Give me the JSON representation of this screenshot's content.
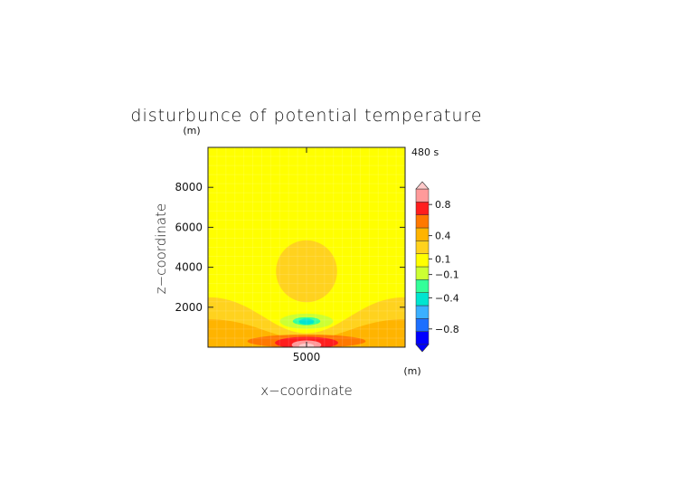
{
  "chart_data": {
    "type": "heatmap",
    "title": "disturbunce of potential temperature",
    "subtitle": "",
    "time_label": "480 s",
    "xlabel": "x−coordinate",
    "ylabel": "z−coordinate",
    "x_unit": "(m)",
    "y_unit": "(m)",
    "xlim": [
      0,
      10000
    ],
    "ylim": [
      0,
      10000
    ],
    "x_ticks": [
      5000
    ],
    "x_tick_labels": [
      "5000"
    ],
    "y_ticks": [
      2000,
      4000,
      6000,
      8000
    ],
    "y_tick_labels": [
      "2000",
      "4000",
      "6000",
      "8000"
    ],
    "colorbar": {
      "levels": [
        -1.0,
        -0.8,
        -0.6,
        -0.4,
        -0.2,
        -0.1,
        0.0,
        0.1,
        0.2,
        0.4,
        0.6,
        0.8,
        1.0
      ],
      "colors": [
        "#0000ff",
        "#1c6fff",
        "#3bb0ff",
        "#00e5d0",
        "#33ff99",
        "#ccff33",
        "#ffff00",
        "#ffd21e",
        "#ffb400",
        "#ff7800",
        "#ff1e1e",
        "#ff9a9a",
        "#ffcaca"
      ],
      "labels": [
        "0.8",
        "0.4",
        "0.1",
        "−0.1",
        "−0.4",
        "−0.8"
      ],
      "label_values": [
        0.8,
        0.4,
        0.1,
        -0.1,
        -0.4,
        -0.8
      ]
    },
    "regions": [
      {
        "kind": "band",
        "level": 0.1,
        "color": "#ffd21e",
        "cx": 5000,
        "top": 2500,
        "side_top": 2500,
        "mid_top": 700
      },
      {
        "kind": "band",
        "level": 0.2,
        "color": "#ffb400",
        "cx": 5000,
        "top": 1400,
        "side_top": 1400,
        "mid_top": 400
      },
      {
        "kind": "ellipse",
        "level": 0.1,
        "color": "#ffd21e",
        "cx": 5000,
        "cy": 3800,
        "rx": 1550,
        "ry": 1550
      },
      {
        "kind": "ellipse",
        "level": -0.1,
        "color": "#ccff33",
        "cx": 5000,
        "cy": 1300,
        "rx": 1350,
        "ry": 380
      },
      {
        "kind": "ellipse",
        "level": -0.2,
        "color": "#33ff99",
        "cx": 5000,
        "cy": 1300,
        "rx": 700,
        "ry": 200
      },
      {
        "kind": "ellipse",
        "level": -0.4,
        "color": "#00e5d0",
        "cx": 5000,
        "cy": 1280,
        "rx": 380,
        "ry": 150
      },
      {
        "kind": "ellipse",
        "level": 0.4,
        "color": "#ff7800",
        "cx": 5000,
        "cy": 300,
        "rx": 3000,
        "ry": 330
      },
      {
        "kind": "ellipse",
        "level": 0.6,
        "color": "#ff1e1e",
        "cx": 5000,
        "cy": 220,
        "rx": 1600,
        "ry": 300
      },
      {
        "kind": "ellipse",
        "level": 0.8,
        "color": "#ff9a9a",
        "cx": 5000,
        "cy": 120,
        "rx": 750,
        "ry": 220
      },
      {
        "kind": "ellipse",
        "level": 1.0,
        "color": "#ffcaca",
        "cx": 5000,
        "cy": 60,
        "rx": 380,
        "ry": 130
      }
    ]
  }
}
